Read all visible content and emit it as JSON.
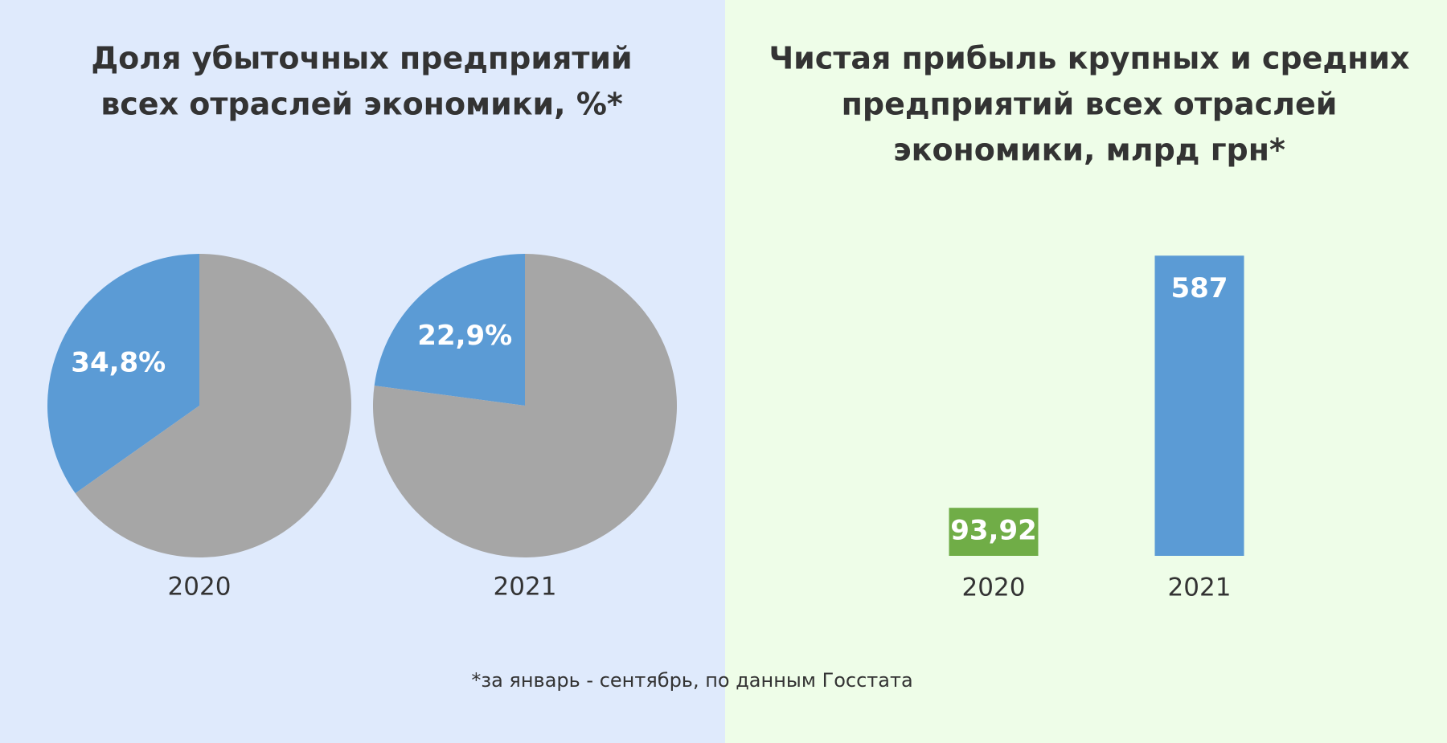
{
  "chart_data": [
    {
      "type": "pie",
      "title": [
        "Доля убыточных предприятий",
        "всех отраслей экономики, %*"
      ],
      "colors": [
        "#5b9bd5",
        "#a6a6a6"
      ],
      "pies": [
        {
          "label": "2020",
          "values": [
            34.8,
            65.2
          ],
          "value_labels": [
            "34,8%",
            null
          ]
        },
        {
          "label": "2021",
          "values": [
            22.9,
            77.1
          ],
          "value_labels": [
            "22,9%",
            null
          ]
        }
      ]
    },
    {
      "type": "bar",
      "title": [
        "Чистая прибыль крупных и средних",
        "предприятий всех отраслей",
        "экономики, млрд грн*"
      ],
      "categories": [
        "2020",
        "2021"
      ],
      "values": [
        93.92,
        587
      ],
      "value_labels": [
        "93,92",
        "587"
      ],
      "colors": [
        "#70ad47",
        "#5b9bd5"
      ],
      "ylim": [
        0,
        600
      ]
    }
  ],
  "footnote": "*за январь - сентябрь, по данным Госстата"
}
